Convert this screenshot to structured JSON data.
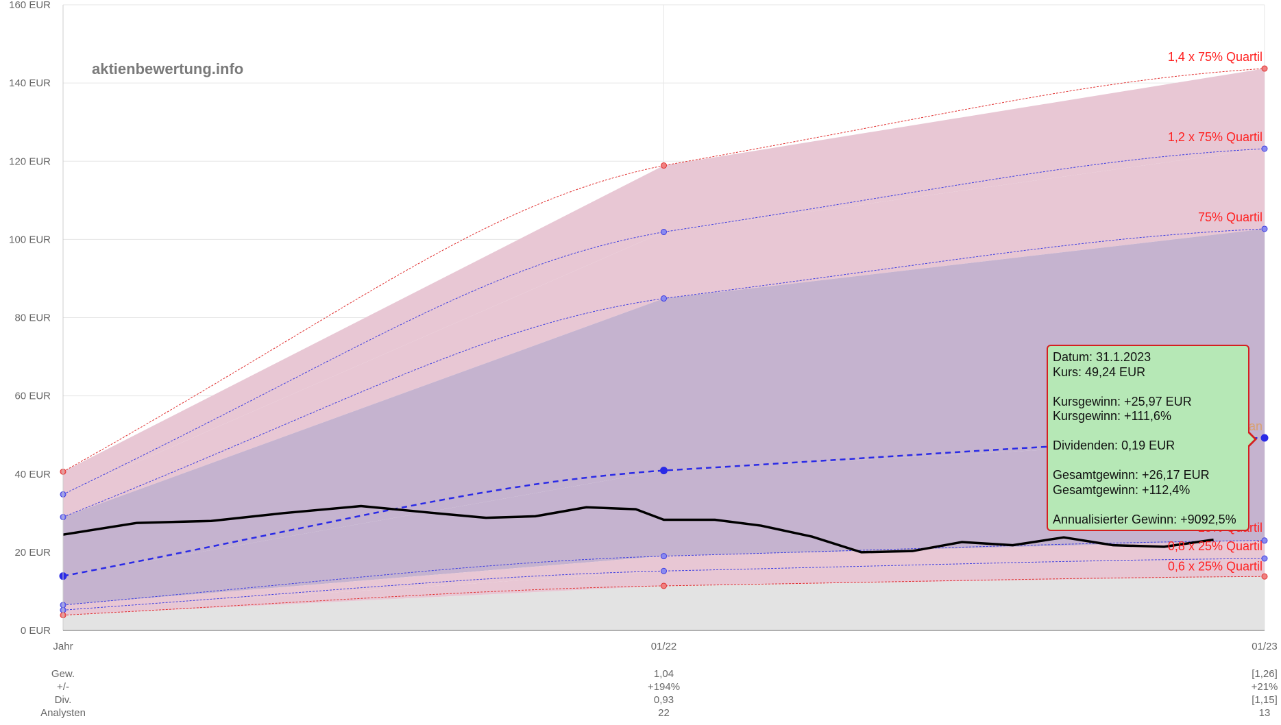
{
  "watermark": "aktienbewertung.info",
  "chart_data": {
    "type": "area",
    "y_unit": "EUR",
    "ylim": [
      0,
      160
    ],
    "y_ticks": [
      "0 EUR",
      "20 EUR",
      "40 EUR",
      "60 EUR",
      "80 EUR",
      "100 EUR",
      "120 EUR",
      "140 EUR",
      "160 EUR"
    ],
    "x_ticks": [
      "Jahr",
      "01/22",
      "01/23"
    ],
    "x_points": [
      "2021-01-01",
      "2022-01-01",
      "2023-01-01"
    ],
    "grid": true,
    "bands": [
      {
        "name": "1,4 x 75% Quartil",
        "values": [
          40.6,
          118.9,
          143.7
        ],
        "color": "#e03030",
        "fill": "#e8c7d4"
      },
      {
        "name": "1,2 x 75% Quartil",
        "values": [
          34.8,
          101.9,
          123.2
        ],
        "color": "#3d3de0",
        "fill": "#e8c7d4"
      },
      {
        "name": "75% Quartil",
        "values": [
          29.0,
          84.9,
          102.7
        ],
        "color": "#3d3de0",
        "fill": "#c5b3cf"
      },
      {
        "name": "Median",
        "values": [
          13.9,
          40.9,
          49.24
        ],
        "color": "#2a2ae6",
        "fill": "#c5b3cf",
        "dashed_bold": true
      },
      {
        "name": "25% Quartil",
        "values": [
          6.5,
          19.0,
          23.0
        ],
        "color": "#3d3de0",
        "fill": "#c5b3cf"
      },
      {
        "name": "0,8 x 25% Quartil",
        "values": [
          5.2,
          15.2,
          18.4
        ],
        "color": "#3d3de0",
        "fill": "#e8c7d4"
      },
      {
        "name": "0,6 x 25% Quartil",
        "values": [
          3.9,
          11.4,
          13.8
        ],
        "color": "#e03030",
        "fill": "#e8c7d4"
      }
    ],
    "label_colors": {
      "1,4 x 75% Quartil": "#ff2020",
      "1,2 x 75% Quartil": "#ff2020",
      "75% Quartil": "#ff2020",
      "Median": "#d9a070",
      "25% Quartil": "#ff2020",
      "0,8 x 25% Quartil": "#ff2020",
      "0,6 x 25% Quartil": "#ff2020"
    },
    "price_series": {
      "x": [
        "2021-01-01",
        "2021-02-15",
        "2021-04-01",
        "2021-05-15",
        "2021-07-01",
        "2021-08-15",
        "2021-09-15",
        "2021-10-15",
        "2021-11-15",
        "2021-12-15",
        "2022-01-01",
        "2022-02-01",
        "2022-03-01",
        "2022-04-01",
        "2022-05-01",
        "2022-06-01",
        "2022-07-01",
        "2022-08-01",
        "2022-09-01",
        "2022-10-01",
        "2022-11-01",
        "2022-12-01"
      ],
      "y": [
        24.5,
        27.5,
        28.0,
        30.0,
        31.8,
        30.0,
        28.8,
        29.2,
        31.5,
        31.0,
        28.3,
        28.3,
        26.8,
        24.0,
        20.0,
        20.3,
        22.6,
        21.8,
        23.8,
        21.8,
        21.4,
        23.2
      ],
      "color": "#000000"
    },
    "bottom_table": {
      "row_labels": [
        "Gew.",
        "+/-",
        "Div.",
        "Analysten"
      ],
      "columns": [
        {
          "x": "01/22",
          "values": [
            "1,04",
            "+194%",
            "0,93",
            "22"
          ]
        },
        {
          "x": "01/23",
          "values": [
            "[1,26]",
            "+21%",
            "[1,15]",
            "13"
          ]
        }
      ]
    }
  },
  "tooltip": {
    "datum": "Datum: 31.1.2023",
    "kurs": "Kurs: 49,24 EUR",
    "kursgewinn_abs": "Kursgewinn: +25,97 EUR",
    "kursgewinn_pct": "Kursgewinn: +111,6%",
    "dividenden": "Dividenden: 0,19 EUR",
    "gesamtgewinn_abs": "Gesamtgewinn: +26,17 EUR",
    "gesamtgewinn_pct": "Gesamtgewinn: +112,4%",
    "annualisiert": "Annualisierter Gewinn: +9092,5%"
  }
}
